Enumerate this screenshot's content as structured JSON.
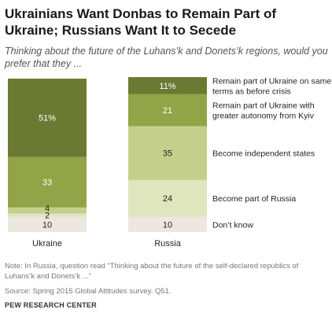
{
  "title": "Ukrainians Want Donbas to Remain Part of Ukraine; Russians Want It to Secede",
  "subtitle": "Thinking about the future of the Luhans’k and Donets’k regions, would you prefer that they ...",
  "note": "Note: In Russia, question read “Thinking about the future of the self-declared republics of Luhans’k and Donets’k ...”",
  "source": "Source: Spring 2015 Global Attitudes survey. Q51.",
  "brand": "PEW RESEARCH CENTER",
  "chart_data": {
    "type": "bar",
    "stacked": true,
    "orientation": "vertical",
    "categories": [
      "Ukraine",
      "Russia"
    ],
    "series": [
      {
        "name": "Remain part of Ukraine on same terms as before crisis",
        "values": [
          51,
          11
        ],
        "color": "#6b7a32",
        "label_color": "#ffffff"
      },
      {
        "name": "Remain part of Ukraine with greater autonomy from Kyiv",
        "values": [
          33,
          21
        ],
        "color": "#93a348",
        "label_color": "#ffffff"
      },
      {
        "name": "Become independent states",
        "values": [
          4,
          35
        ],
        "color": "#c3cf8a",
        "label_color": "#231f20"
      },
      {
        "name": "Become part of Russia",
        "values": [
          2,
          24
        ],
        "color": "#dfe5bd",
        "label_color": "#231f20"
      },
      {
        "name": "Don’t know",
        "values": [
          10,
          10
        ],
        "color": "#ece8e0",
        "label_color": "#231f20"
      }
    ],
    "value_labels": [
      [
        "51%",
        "33",
        "4",
        "2",
        "10"
      ],
      [
        "11%",
        "21",
        "35",
        "24",
        "10"
      ]
    ],
    "ylim": [
      0,
      100
    ],
    "legend": "right"
  }
}
